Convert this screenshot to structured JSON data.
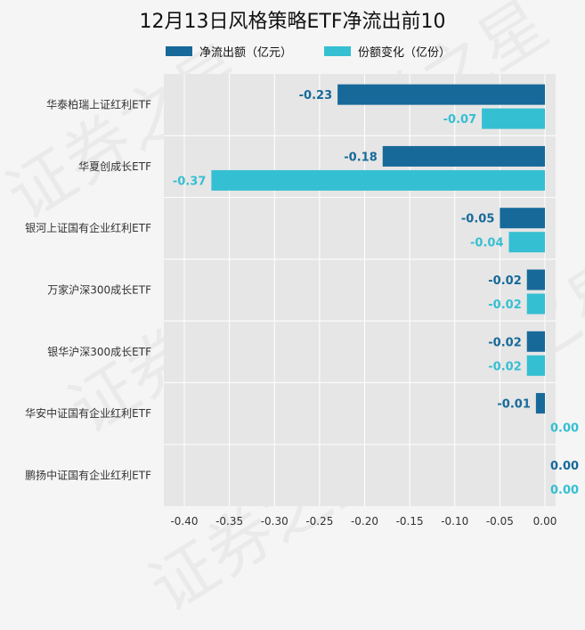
{
  "watermark": "证券之星",
  "colors": {
    "net_outflow": "#17699a",
    "share_change": "#35bfd2",
    "plot_bg": "#e6e6e6",
    "grid": "#ffffff"
  },
  "chart_data": {
    "type": "bar",
    "orientation": "horizontal",
    "title": "12月13日风格策略ETF净流出前10",
    "categories": [
      "华泰柏瑞上证红利ETF",
      "华夏创成长ETF",
      "银河上证国有企业红利ETF",
      "万家沪深300成长ETF",
      "银华沪深300成长ETF",
      "华安中证国有企业红利ETF",
      "鹏扬中证国有企业红利ETF"
    ],
    "series": [
      {
        "name": "净流出额（亿元）",
        "values": [
          -0.23,
          -0.18,
          -0.05,
          -0.02,
          -0.02,
          -0.01,
          0.0
        ]
      },
      {
        "name": "份额变化（亿份）",
        "values": [
          -0.07,
          -0.37,
          -0.04,
          -0.02,
          -0.02,
          0.0,
          0.0
        ]
      }
    ],
    "xlim": [
      -0.42,
      0.0
    ],
    "xticks": [
      "-0.40",
      "-0.35",
      "-0.30",
      "-0.25",
      "-0.20",
      "-0.15",
      "-0.10",
      "-0.05",
      "0.00"
    ],
    "grid": true,
    "legend_position": "top"
  }
}
